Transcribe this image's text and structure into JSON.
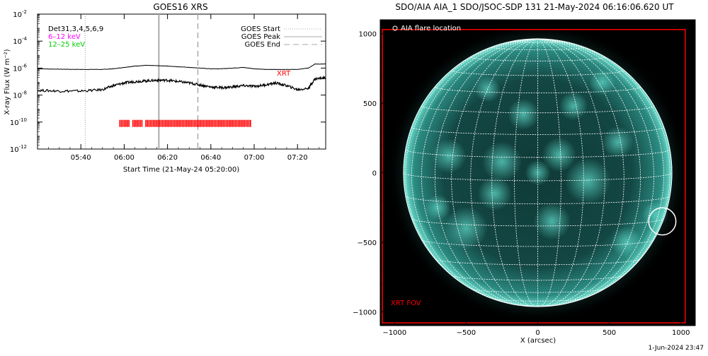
{
  "footer": {
    "timestamp": "1-Jun-2024 23:47"
  },
  "colors": {
    "flux_main": "#000000",
    "xrt_marks": "#ff0000",
    "legend_6_12": "#ff00ff",
    "legend_12_25": "#00cc00",
    "peak_line": "#aaaaaa",
    "end_line": "#aaaaaa",
    "start_line": "#aaaaaa",
    "sun_base": "#0c2e2c",
    "sun_bright": "#5fd9c8",
    "fov_box": "#ff0000",
    "grid": "#ffffff"
  },
  "goes": {
    "title": "GOES16 XRS",
    "ylabel": "X-ray Flux (W m⁻²)",
    "xlabel": "Start Time (21-May-24 05:20:00)",
    "ytick_labels": [
      {
        "base": "10",
        "exp": "-2",
        "value": -2
      },
      {
        "base": "10",
        "exp": "-4",
        "value": -4
      },
      {
        "base": "10",
        "exp": "-6",
        "value": -6
      },
      {
        "base": "10",
        "exp": "-8",
        "value": -8
      },
      {
        "base": "10",
        "exp": "-10",
        "value": -10
      },
      {
        "base": "10",
        "exp": "-12",
        "value": -12
      }
    ],
    "xtick_labels": [
      {
        "label": "05:40",
        "minutes": 20
      },
      {
        "label": "06:00",
        "minutes": 40
      },
      {
        "label": "06:20",
        "minutes": 60
      },
      {
        "label": "06:40",
        "minutes": 80
      },
      {
        "label": "07:00",
        "minutes": 100
      },
      {
        "label": "07:20",
        "minutes": 120
      }
    ],
    "legend_left": {
      "det": "Det31,3,4,5,6,9",
      "band1": "6–12 keV",
      "band2": "12–25 keV"
    },
    "legend_right": {
      "start": "GOES Start",
      "peak": "GOES Peak",
      "end": "GOES End"
    },
    "xrt_label": "XRT"
  },
  "aia": {
    "title": "SDO/AIA AIA_1 SDO/JSOC-SDP 131 21-May-2024 06:16:06.620 UT",
    "flare_label": "AIA flare location",
    "fov_label": "XRT FOV",
    "xlabel": "X (arcsec)",
    "xtick_labels": [
      {
        "label": "−1000",
        "value": -1000
      },
      {
        "label": "−500",
        "value": -500
      },
      {
        "label": "0",
        "value": 0
      },
      {
        "label": "500",
        "value": 500
      },
      {
        "label": "1000",
        "value": 1000
      }
    ],
    "ytick_labels": [
      {
        "label": "1000",
        "value": 1000
      },
      {
        "label": "500",
        "value": 500
      },
      {
        "label": "0",
        "value": 0
      },
      {
        "label": "−500",
        "value": -500
      },
      {
        "label": "−1000",
        "value": -1000
      }
    ]
  },
  "chart_data": [
    {
      "type": "line",
      "title": "GOES16 XRS",
      "xlabel": "Start Time (21-May-24 05:20:00)",
      "ylabel": "X-ray Flux (W m⁻²)",
      "yscale": "log",
      "ylim_log10": [
        -12,
        -2
      ],
      "xlim_minutes_from_start": [
        0,
        133
      ],
      "series": [
        {
          "name": "",
          "x_minutes": [
            0,
            10,
            20,
            30,
            35,
            40,
            45,
            50,
            55,
            60,
            65,
            70,
            75,
            80,
            85,
            90,
            95,
            100,
            105,
            110,
            115,
            120,
            125,
            128,
            133
          ],
          "log10_flux": [
            -6.05,
            -6.08,
            -6.1,
            -6.1,
            -6.05,
            -5.95,
            -5.85,
            -5.8,
            -5.82,
            -5.85,
            -5.9,
            -5.95,
            -6.0,
            -6.05,
            -6.05,
            -6.0,
            -5.95,
            -6.05,
            -6.1,
            -6.1,
            -6.1,
            -6.1,
            -6.0,
            -5.7,
            -5.7
          ]
        },
        {
          "name": "",
          "x_minutes": [
            0,
            10,
            20,
            30,
            35,
            40,
            45,
            50,
            55,
            60,
            65,
            70,
            75,
            80,
            85,
            90,
            95,
            100,
            105,
            110,
            115,
            120,
            125,
            128,
            133
          ],
          "log10_flux": [
            -7.65,
            -7.7,
            -7.7,
            -7.6,
            -7.3,
            -7.1,
            -7.0,
            -6.95,
            -6.9,
            -6.9,
            -7.0,
            -7.1,
            -7.25,
            -7.4,
            -7.45,
            -7.4,
            -7.3,
            -7.35,
            -7.25,
            -7.1,
            -7.3,
            -7.6,
            -7.5,
            -6.8,
            -6.7
          ]
        }
      ],
      "vlines": {
        "start_minutes": 22,
        "peak_minutes": 56,
        "end_minutes": 74
      },
      "xrt_marks": {
        "log10_level": -10.1,
        "times_minutes": [
          38,
          38.7,
          39.4,
          40.1,
          40.8,
          41.5,
          42.2,
          44,
          44.7,
          45.4,
          46.1,
          46.8,
          47.5,
          48.2,
          50,
          50.7,
          51.4,
          52.1,
          52.8,
          53.5,
          54.2,
          54.9,
          55.6,
          56.3,
          57,
          57.7,
          58.4,
          59.1,
          59.8,
          60.5,
          61.2,
          61.9,
          62.6,
          63.3,
          64,
          64.7,
          65.4,
          66.1,
          66.8,
          67.5,
          68.2,
          68.9,
          69.6,
          70.3,
          71,
          71.7,
          72.4,
          73.1,
          73.8,
          74.5,
          75.2,
          75.9,
          76.6,
          77.3,
          78,
          78.7,
          79.4,
          80.1,
          80.8,
          81.5,
          82.2,
          82.9,
          83.6,
          84.3,
          85,
          85.7,
          86.4,
          87.1,
          87.8,
          88.5,
          89.2,
          89.9,
          90.6,
          91.3,
          92,
          92.7,
          93.4,
          94.1,
          94.8,
          95.5,
          96.2,
          96.9,
          97.6,
          98.3
        ]
      }
    },
    {
      "type": "image",
      "title": "SDO/AIA AIA_1 SDO/JSOC-SDP 131 21-May-2024 06:16:06.620 UT",
      "xlabel": "X (arcsec)",
      "xlim": [
        -1100,
        1100
      ],
      "ylim": [
        -1100,
        1100
      ],
      "solar_radius_arcsec": 950,
      "flare_location_arcsec": [
        870,
        -350
      ],
      "flare_circle_radius_arcsec": 95,
      "xrt_fov_arcsec": {
        "x": [
          -1085,
          1030
        ],
        "y": [
          -1080,
          1030
        ]
      }
    }
  ]
}
